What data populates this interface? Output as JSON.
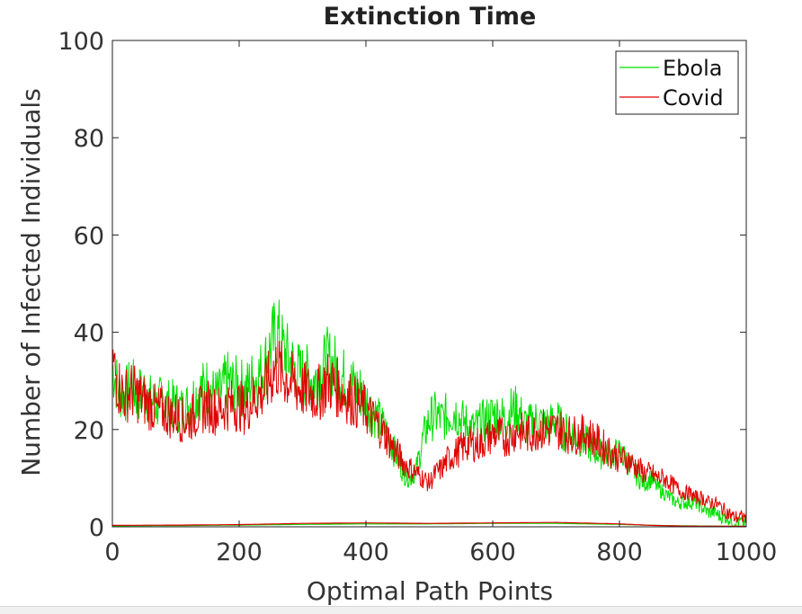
{
  "chart_data": {
    "type": "line",
    "title": "Extinction Time",
    "xlabel": "Optimal Path Points",
    "ylabel": "Number of Infected Individuals",
    "xlim": [
      0,
      1000
    ],
    "ylim": [
      0,
      100
    ],
    "xticks": [
      0,
      200,
      400,
      600,
      800,
      1000
    ],
    "yticks": [
      0,
      20,
      40,
      60,
      80,
      100
    ],
    "grid": false,
    "legend_position": "top-right",
    "series": [
      {
        "name": "Ebola",
        "color": "#00e000",
        "x": [
          0,
          10,
          20,
          30,
          40,
          50,
          60,
          70,
          80,
          90,
          100,
          110,
          120,
          130,
          140,
          150,
          160,
          170,
          180,
          190,
          200,
          210,
          220,
          230,
          240,
          250,
          260,
          270,
          280,
          290,
          300,
          310,
          320,
          330,
          340,
          350,
          360,
          370,
          380,
          390,
          400,
          410,
          420,
          430,
          440,
          450,
          460,
          470,
          480,
          490,
          500,
          510,
          520,
          530,
          540,
          550,
          560,
          570,
          580,
          590,
          600,
          610,
          620,
          630,
          640,
          650,
          660,
          670,
          680,
          690,
          700,
          710,
          720,
          730,
          740,
          750,
          760,
          770,
          780,
          790,
          800,
          810,
          820,
          830,
          840,
          850,
          860,
          870,
          880,
          890,
          900,
          910,
          920,
          930,
          940,
          950,
          960,
          970,
          980,
          990,
          1000
        ],
        "values": [
          33,
          28,
          27,
          29,
          27,
          28,
          26,
          25,
          26,
          25,
          25,
          24,
          25,
          27,
          28,
          29,
          27,
          27,
          30,
          29,
          29,
          28,
          30,
          31,
          33,
          37,
          40,
          36,
          34,
          32,
          31,
          31,
          30,
          32,
          34,
          33,
          31,
          30,
          29,
          28,
          26,
          24,
          22,
          20,
          17,
          14,
          11,
          10,
          12,
          18,
          22,
          23,
          22,
          23,
          24,
          22,
          21,
          20,
          21,
          22,
          23,
          23,
          22,
          24,
          24,
          21,
          21,
          22,
          21,
          21,
          22,
          20,
          19,
          19,
          18,
          17,
          16,
          15,
          15,
          15,
          15,
          14,
          12,
          10,
          9,
          10,
          8,
          7,
          6,
          5,
          5,
          5,
          5,
          4,
          3,
          3,
          2,
          2,
          1,
          1,
          1
        ]
      },
      {
        "name": "Covid",
        "color": "#e00000",
        "x": [
          0,
          10,
          20,
          30,
          40,
          50,
          60,
          70,
          80,
          90,
          100,
          110,
          120,
          130,
          140,
          150,
          160,
          170,
          180,
          190,
          200,
          210,
          220,
          230,
          240,
          250,
          260,
          270,
          280,
          290,
          300,
          310,
          320,
          330,
          340,
          350,
          360,
          370,
          380,
          390,
          400,
          410,
          420,
          430,
          440,
          450,
          460,
          470,
          480,
          490,
          500,
          510,
          520,
          530,
          540,
          550,
          560,
          570,
          580,
          590,
          600,
          610,
          620,
          630,
          640,
          650,
          660,
          670,
          680,
          690,
          700,
          710,
          720,
          730,
          740,
          750,
          760,
          770,
          780,
          790,
          800,
          810,
          820,
          830,
          840,
          850,
          860,
          870,
          880,
          890,
          900,
          910,
          920,
          930,
          940,
          950,
          960,
          970,
          980,
          990,
          1000
        ],
        "values": [
          34,
          29,
          27,
          28,
          27,
          26,
          25,
          24,
          24,
          23,
          23,
          22,
          22,
          23,
          24,
          25,
          24,
          24,
          25,
          25,
          25,
          24,
          26,
          27,
          28,
          31,
          33,
          31,
          30,
          29,
          28,
          28,
          27,
          28,
          30,
          29,
          28,
          27,
          26,
          25,
          24,
          22,
          21,
          19,
          17,
          15,
          13,
          12,
          11,
          10,
          9,
          11,
          12,
          14,
          15,
          16,
          17,
          17,
          17,
          18,
          19,
          19,
          18,
          19,
          20,
          19,
          19,
          20,
          20,
          20,
          20,
          20,
          19,
          19,
          19,
          19,
          18,
          17,
          16,
          15,
          14,
          14,
          13,
          12,
          11,
          11,
          10,
          10,
          9,
          8,
          7,
          7,
          6,
          6,
          5,
          5,
          4,
          3,
          2,
          2,
          2
        ]
      },
      {
        "name": "",
        "color": "#00e000",
        "x": [
          0,
          100,
          200,
          300,
          400,
          500,
          600,
          700,
          800,
          850,
          900,
          1000
        ],
        "values": [
          0.2,
          0.25,
          0.35,
          0.5,
          0.6,
          0.6,
          0.7,
          0.7,
          0.5,
          0.3,
          0.2,
          0.1
        ]
      },
      {
        "name": "",
        "color": "#e00000",
        "x": [
          0,
          100,
          200,
          300,
          400,
          500,
          600,
          700,
          800,
          850,
          900,
          1000
        ],
        "values": [
          0.3,
          0.35,
          0.45,
          0.7,
          0.8,
          0.7,
          0.8,
          0.9,
          0.6,
          0.3,
          0.15,
          0.1
        ]
      }
    ]
  }
}
